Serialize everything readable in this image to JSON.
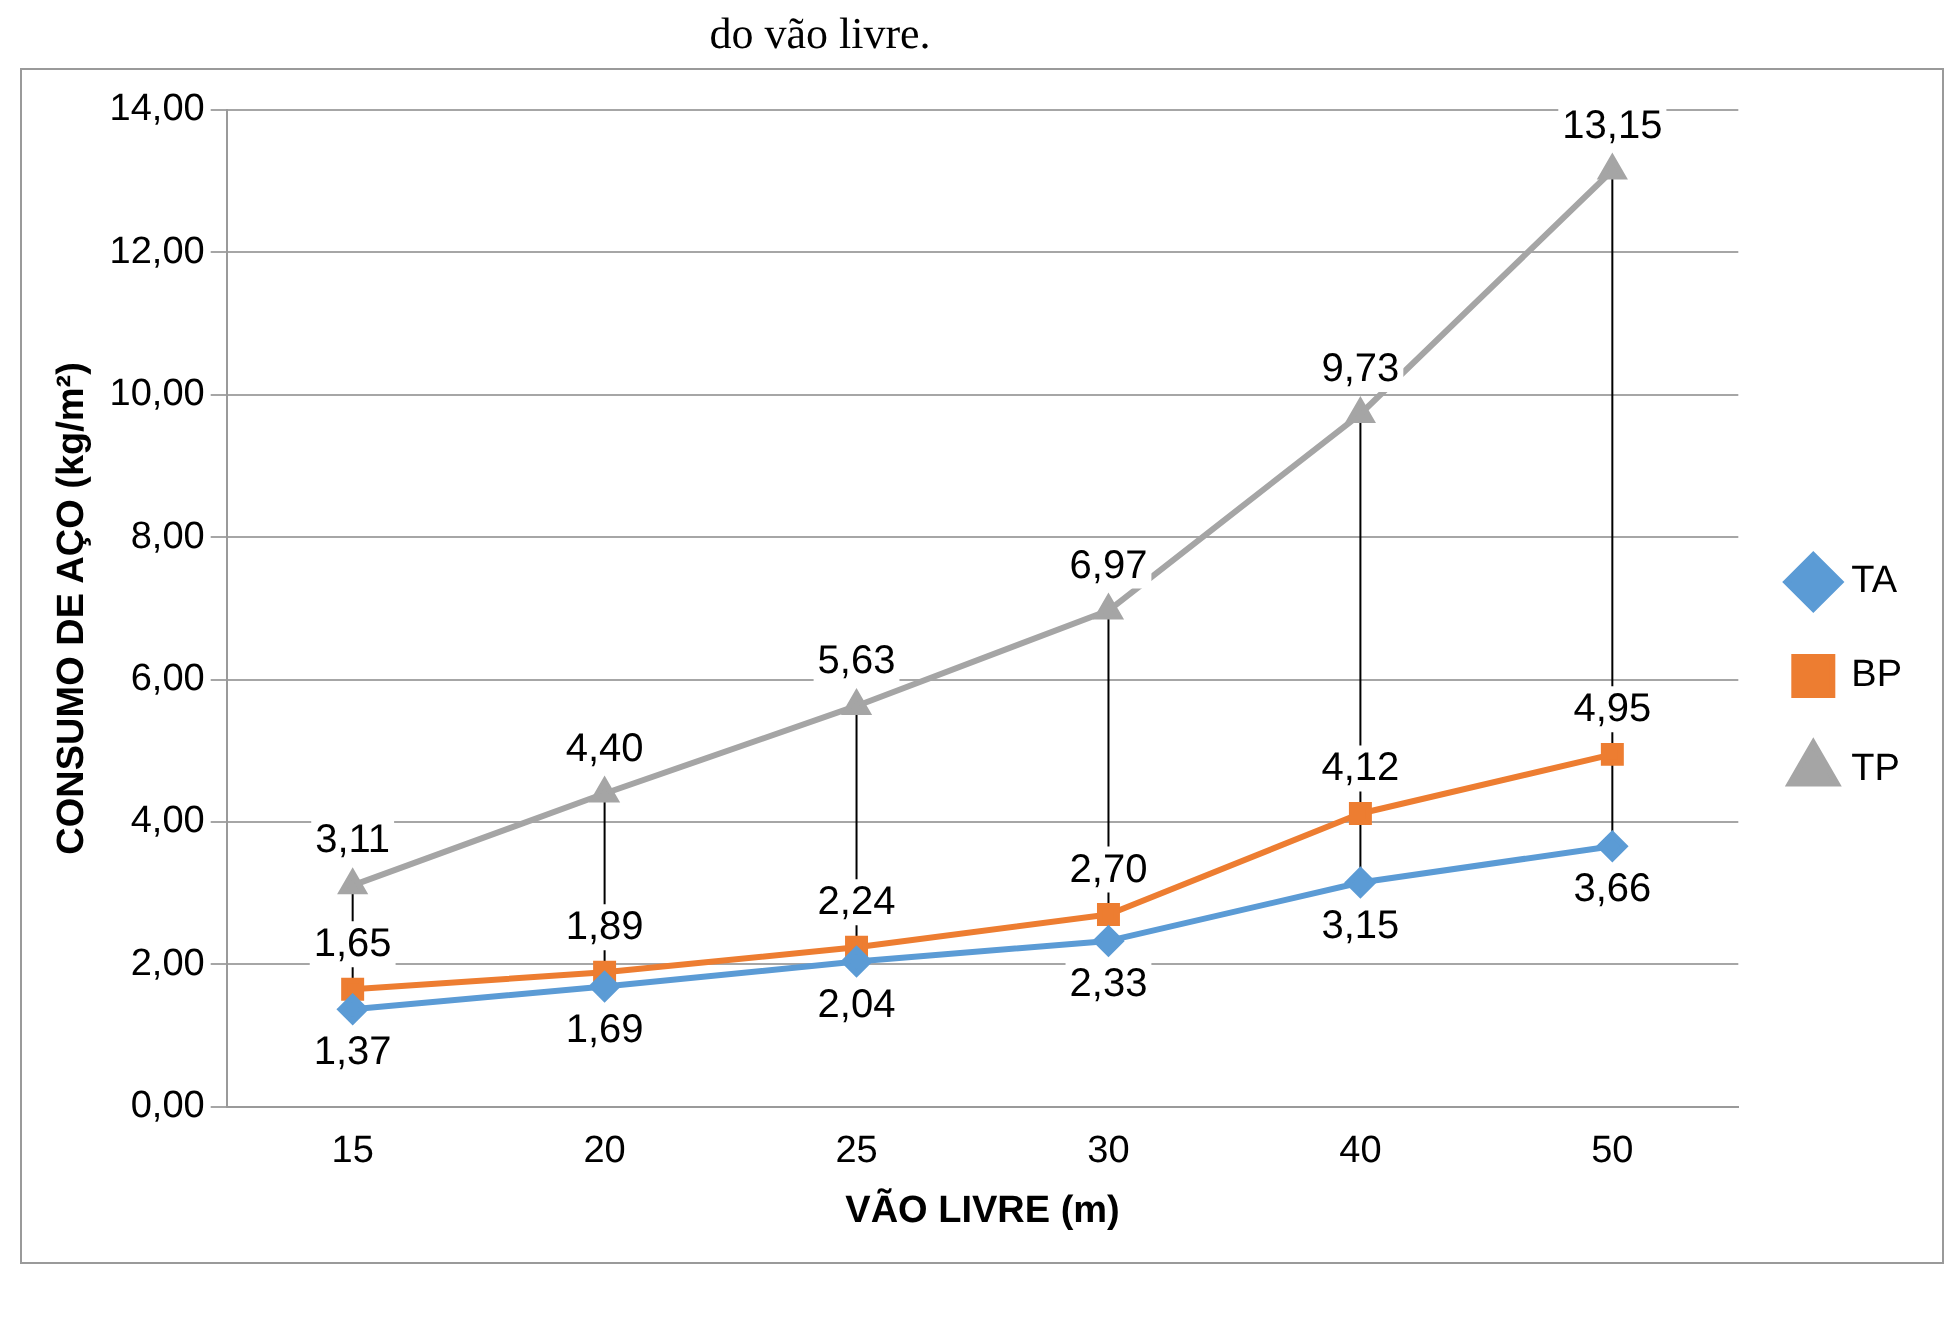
{
  "chart_data": {
    "type": "line",
    "title": "do vão livre.",
    "xlabel": "VÃO LIVRE (m)",
    "ylabel": "CONSUMO DE AÇO (kg/m²)",
    "categories": [
      "15",
      "20",
      "25",
      "30",
      "40",
      "50"
    ],
    "series": [
      {
        "name": "TA",
        "color": "#5b9bd5",
        "marker": "diamond",
        "values": [
          1.37,
          1.69,
          2.04,
          2.33,
          3.15,
          3.66
        ],
        "value_labels": [
          "1,37",
          "1,69",
          "2,04",
          "2,33",
          "3,15",
          "3,66"
        ]
      },
      {
        "name": "BP",
        "color": "#ed7d31",
        "marker": "square",
        "values": [
          1.65,
          1.89,
          2.24,
          2.7,
          4.12,
          4.95
        ],
        "value_labels": [
          "1,65",
          "1,89",
          "2,24",
          "2,70",
          "4,12",
          "4,95"
        ]
      },
      {
        "name": "TP",
        "color": "#a5a5a5",
        "marker": "triangle",
        "values": [
          3.11,
          4.4,
          5.63,
          6.97,
          9.73,
          13.15
        ],
        "value_labels": [
          "3,11",
          "4,40",
          "5,63",
          "6,97",
          "9,73",
          "13,15"
        ]
      }
    ],
    "ylim": [
      0,
      14
    ],
    "yticks": [
      {
        "value": 0,
        "label": "0,00"
      },
      {
        "value": 2,
        "label": "2,00"
      },
      {
        "value": 4,
        "label": "4,00"
      },
      {
        "value": 6,
        "label": "6,00"
      },
      {
        "value": 8,
        "label": "8,00"
      },
      {
        "value": 10,
        "label": "10,00"
      },
      {
        "value": 12,
        "label": "12,00"
      },
      {
        "value": 14,
        "label": "14,00"
      }
    ],
    "grid": "y",
    "legend": "right"
  }
}
